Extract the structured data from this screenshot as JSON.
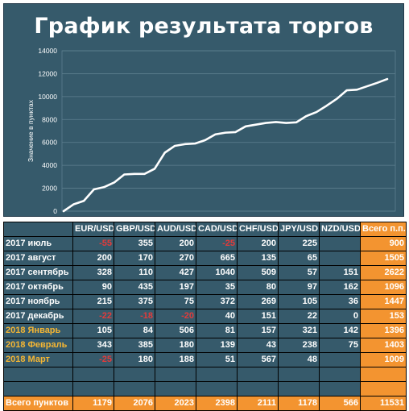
{
  "chart_data": {
    "type": "line",
    "title": "График результата торгов",
    "ylabel": "Значение в пунктах",
    "ylim": [
      0,
      14000
    ],
    "yticks": [
      0,
      2000,
      4000,
      6000,
      8000,
      10000,
      12000,
      14000
    ],
    "grid": true,
    "series": [
      {
        "values": [
          0,
          600,
          900,
          1900,
          2100,
          2500,
          3200,
          3250,
          3250,
          3700,
          5100,
          5700,
          5850,
          5900,
          6200,
          6700,
          6850,
          6900,
          7400,
          7550,
          7700,
          7780,
          7700,
          7750,
          8300,
          8650,
          9200,
          9800,
          10550,
          10600,
          10900,
          11200,
          11531
        ]
      }
    ],
    "line_color": "#ffffff"
  },
  "table": {
    "headers": [
      "EUR/USD",
      "GBP/USD",
      "AUD/USD",
      "CAD/USD",
      "CHF/USD",
      "JPY/USD",
      "NZD/USD",
      "Всего п.п."
    ],
    "rows": [
      {
        "label": "2017 июль",
        "highlight": false,
        "cells": [
          "-55",
          "355",
          "200",
          "-25",
          "200",
          "225",
          "",
          "900"
        ]
      },
      {
        "label": "2017 август",
        "highlight": false,
        "cells": [
          "200",
          "170",
          "270",
          "665",
          "135",
          "65",
          "",
          "1505"
        ]
      },
      {
        "label": "2017 сентябрь",
        "highlight": false,
        "cells": [
          "328",
          "110",
          "427",
          "1040",
          "509",
          "57",
          "151",
          "2622"
        ]
      },
      {
        "label": "2017 октябрь",
        "highlight": false,
        "cells": [
          "90",
          "435",
          "197",
          "35",
          "80",
          "97",
          "162",
          "1096"
        ]
      },
      {
        "label": "2017 ноябрь",
        "highlight": false,
        "cells": [
          "215",
          "375",
          "75",
          "372",
          "269",
          "105",
          "36",
          "1447"
        ]
      },
      {
        "label": "2017 декабрь",
        "highlight": false,
        "cells": [
          "-22",
          "-18",
          "-20",
          "40",
          "151",
          "22",
          "0",
          "153"
        ]
      },
      {
        "label": "2018 Январь",
        "highlight": true,
        "cells": [
          "105",
          "84",
          "506",
          "81",
          "157",
          "321",
          "142",
          "1396"
        ]
      },
      {
        "label": "2018 Февраль",
        "highlight": true,
        "cells": [
          "343",
          "385",
          "180",
          "139",
          "43",
          "238",
          "75",
          "1403"
        ]
      },
      {
        "label": "2018 Март",
        "highlight": true,
        "cells": [
          "-25",
          "180",
          "188",
          "51",
          "567",
          "48",
          "",
          "1009"
        ]
      }
    ],
    "footer": {
      "label": "Всего пунктов",
      "cells": [
        "1179",
        "2076",
        "2023",
        "2398",
        "2111",
        "1178",
        "566",
        "11531"
      ]
    }
  }
}
